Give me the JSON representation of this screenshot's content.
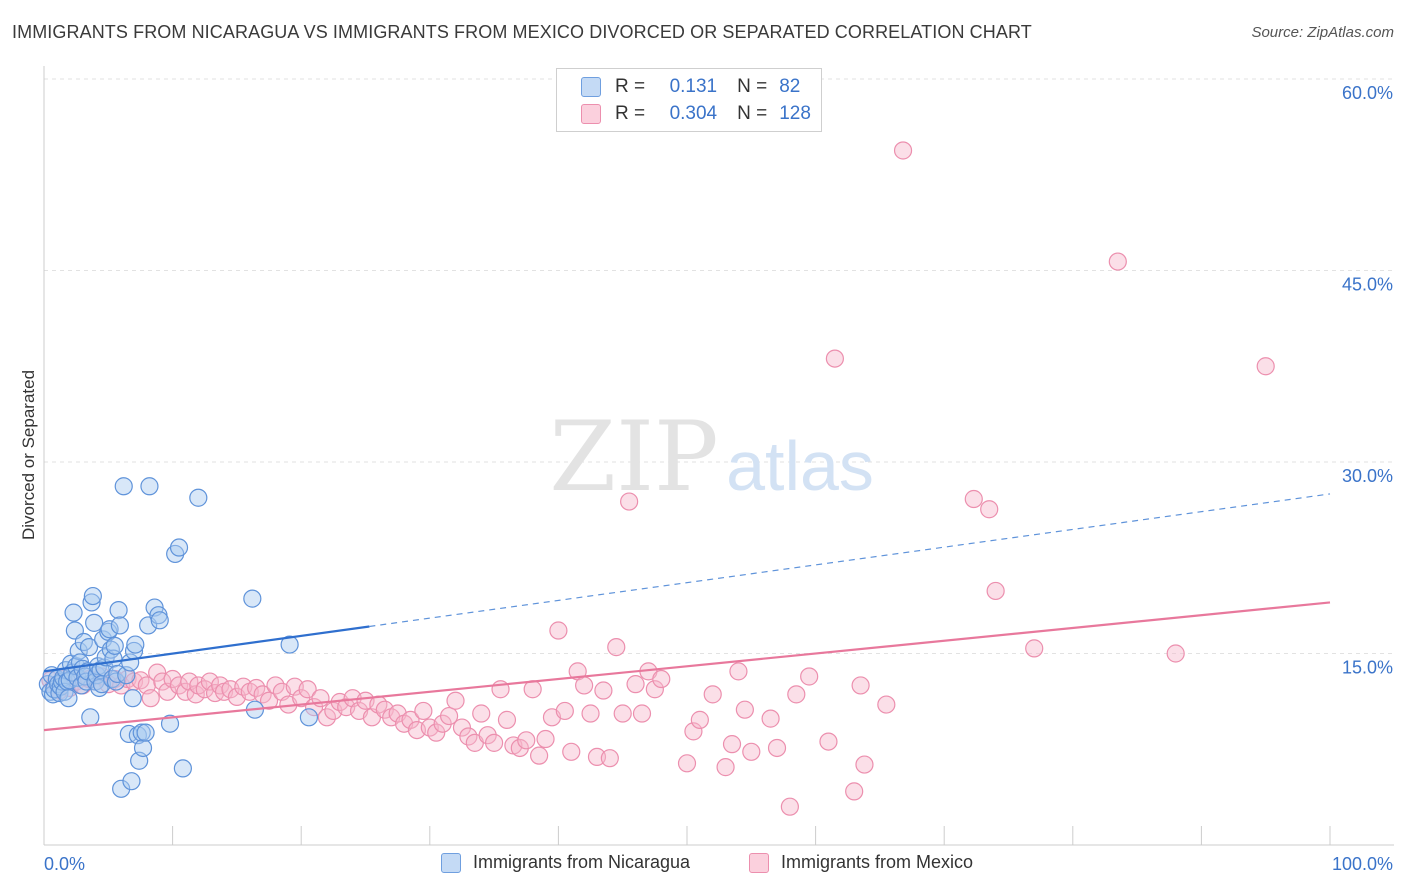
{
  "header": {
    "title": "IMMIGRANTS FROM NICARAGUA VS IMMIGRANTS FROM MEXICO DIVORCED OR SEPARATED CORRELATION CHART",
    "source": "Source: ZipAtlas.com"
  },
  "watermark": {
    "zip": "ZIP",
    "atlas": "atlas"
  },
  "legend": {
    "series1": {
      "r_label": "R =",
      "r_value": "0.131",
      "n_label": "N =",
      "n_value": "82",
      "color": "#a9c9f0"
    },
    "series2": {
      "r_label": "R =",
      "r_value": "0.304",
      "n_label": "N =",
      "n_value": "128",
      "color": "#f7b8cb"
    }
  },
  "bottom_legend": {
    "series1": "Immigrants from Nicaragua",
    "series2": "Immigrants from Mexico"
  },
  "chart_data": {
    "type": "scatter",
    "ylabel": "Divorced or Separated",
    "xlim": [
      0,
      100
    ],
    "ylim": [
      0,
      60
    ],
    "x_tick_labels": [
      "0.0%",
      "100.0%"
    ],
    "y_tick_labels": [
      {
        "value": 15,
        "label": "15.0%"
      },
      {
        "value": 30,
        "label": "30.0%"
      },
      {
        "value": 45,
        "label": "45.0%"
      },
      {
        "value": 60,
        "label": "60.0%"
      }
    ],
    "grid": true,
    "colors": {
      "nicaragua": "#4a86d8",
      "mexico": "#e8789c"
    },
    "series": [
      {
        "name": "Immigrants from Nicaragua",
        "trend": {
          "x0": 0,
          "y0": 13.6,
          "x1": 100,
          "y1": 27.5,
          "solid_until": 25.3
        },
        "points": [
          [
            0.3,
            12.6
          ],
          [
            0.5,
            12.0
          ],
          [
            0.6,
            13.3
          ],
          [
            0.7,
            11.8
          ],
          [
            0.8,
            12.2
          ],
          [
            1.0,
            13.0
          ],
          [
            1.1,
            12.6
          ],
          [
            1.2,
            11.9
          ],
          [
            1.3,
            12.4
          ],
          [
            1.4,
            12.8
          ],
          [
            1.5,
            13.1
          ],
          [
            1.6,
            12.0
          ],
          [
            1.7,
            13.7
          ],
          [
            1.8,
            12.8
          ],
          [
            1.9,
            11.5
          ],
          [
            2.0,
            12.9
          ],
          [
            2.1,
            14.2
          ],
          [
            2.2,
            13.5
          ],
          [
            2.3,
            18.2
          ],
          [
            2.4,
            16.8
          ],
          [
            2.5,
            14.0
          ],
          [
            2.6,
            13.1
          ],
          [
            2.7,
            15.2
          ],
          [
            2.8,
            14.3
          ],
          [
            2.9,
            12.5
          ],
          [
            3.0,
            13.8
          ],
          [
            3.1,
            15.9
          ],
          [
            3.2,
            13.2
          ],
          [
            3.3,
            12.8
          ],
          [
            3.4,
            13.6
          ],
          [
            3.5,
            15.5
          ],
          [
            3.6,
            10.0
          ],
          [
            3.7,
            19.0
          ],
          [
            3.8,
            19.5
          ],
          [
            3.9,
            17.4
          ],
          [
            4.0,
            12.8
          ],
          [
            4.1,
            13.3
          ],
          [
            4.2,
            14.0
          ],
          [
            4.3,
            12.3
          ],
          [
            4.4,
            13.7
          ],
          [
            4.5,
            12.6
          ],
          [
            4.6,
            16.1
          ],
          [
            4.7,
            13.9
          ],
          [
            4.8,
            14.7
          ],
          [
            5.0,
            16.7
          ],
          [
            5.1,
            16.9
          ],
          [
            5.2,
            15.3
          ],
          [
            5.3,
            13.0
          ],
          [
            5.4,
            14.6
          ],
          [
            5.5,
            15.6
          ],
          [
            5.6,
            12.8
          ],
          [
            5.7,
            13.4
          ],
          [
            5.8,
            18.4
          ],
          [
            5.9,
            17.2
          ],
          [
            6.0,
            4.4
          ],
          [
            6.2,
            28.1
          ],
          [
            6.4,
            13.3
          ],
          [
            6.6,
            8.7
          ],
          [
            6.7,
            14.3
          ],
          [
            6.8,
            5.0
          ],
          [
            6.9,
            11.5
          ],
          [
            7.0,
            15.2
          ],
          [
            7.1,
            15.7
          ],
          [
            7.3,
            8.6
          ],
          [
            7.4,
            6.6
          ],
          [
            7.6,
            8.8
          ],
          [
            7.7,
            7.6
          ],
          [
            7.9,
            8.8
          ],
          [
            8.1,
            17.2
          ],
          [
            8.2,
            28.1
          ],
          [
            8.6,
            18.6
          ],
          [
            8.9,
            18.0
          ],
          [
            9.0,
            17.6
          ],
          [
            9.8,
            9.5
          ],
          [
            10.2,
            22.8
          ],
          [
            10.5,
            23.3
          ],
          [
            10.8,
            6.0
          ],
          [
            12.0,
            27.2
          ],
          [
            16.2,
            19.3
          ],
          [
            16.4,
            10.6
          ],
          [
            19.1,
            15.7
          ],
          [
            20.6,
            10.0
          ]
        ]
      },
      {
        "name": "Immigrants from Mexico",
        "trend": {
          "x0": 0,
          "y0": 9.0,
          "x1": 100,
          "y1": 19.0
        },
        "points": [
          [
            0.5,
            12.9
          ],
          [
            0.8,
            12.5
          ],
          [
            1.2,
            12.1
          ],
          [
            1.5,
            13.0
          ],
          [
            2.0,
            12.3
          ],
          [
            2.5,
            12.8
          ],
          [
            3.0,
            12.5
          ],
          [
            3.5,
            13.0
          ],
          [
            4.0,
            12.8
          ],
          [
            4.5,
            13.2
          ],
          [
            5.0,
            12.6
          ],
          [
            5.5,
            13.0
          ],
          [
            6.0,
            12.5
          ],
          [
            6.5,
            13.0
          ],
          [
            7.0,
            12.8
          ],
          [
            7.5,
            12.9
          ],
          [
            8.0,
            12.5
          ],
          [
            8.3,
            11.5
          ],
          [
            8.8,
            13.5
          ],
          [
            9.2,
            12.8
          ],
          [
            9.6,
            12.0
          ],
          [
            10.0,
            13.0
          ],
          [
            10.5,
            12.5
          ],
          [
            11.0,
            12.0
          ],
          [
            11.3,
            12.8
          ],
          [
            11.8,
            11.8
          ],
          [
            12.0,
            12.5
          ],
          [
            12.5,
            12.2
          ],
          [
            12.9,
            12.8
          ],
          [
            13.3,
            11.9
          ],
          [
            13.7,
            12.5
          ],
          [
            14.0,
            12.0
          ],
          [
            14.5,
            12.2
          ],
          [
            15.0,
            11.6
          ],
          [
            15.5,
            12.4
          ],
          [
            16.0,
            12.0
          ],
          [
            16.5,
            12.3
          ],
          [
            17.0,
            11.8
          ],
          [
            17.5,
            11.3
          ],
          [
            18.0,
            12.5
          ],
          [
            18.5,
            12.0
          ],
          [
            19.0,
            11.0
          ],
          [
            19.5,
            12.4
          ],
          [
            20.0,
            11.5
          ],
          [
            20.5,
            12.2
          ],
          [
            21.0,
            10.8
          ],
          [
            21.5,
            11.5
          ],
          [
            22.0,
            10.0
          ],
          [
            22.5,
            10.5
          ],
          [
            23.0,
            11.2
          ],
          [
            23.5,
            10.8
          ],
          [
            24.0,
            11.5
          ],
          [
            24.5,
            10.5
          ],
          [
            25.0,
            11.3
          ],
          [
            25.5,
            10.0
          ],
          [
            26.0,
            11.0
          ],
          [
            26.5,
            10.6
          ],
          [
            27.0,
            10.0
          ],
          [
            27.5,
            10.3
          ],
          [
            28.0,
            9.5
          ],
          [
            28.5,
            9.8
          ],
          [
            29.0,
            9.0
          ],
          [
            29.5,
            10.5
          ],
          [
            30.0,
            9.2
          ],
          [
            30.5,
            8.8
          ],
          [
            31.0,
            9.5
          ],
          [
            31.5,
            10.1
          ],
          [
            32.0,
            11.3
          ],
          [
            32.5,
            9.2
          ],
          [
            33.0,
            8.5
          ],
          [
            33.5,
            8.0
          ],
          [
            34.0,
            10.3
          ],
          [
            34.5,
            8.6
          ],
          [
            35.0,
            8.0
          ],
          [
            35.5,
            12.2
          ],
          [
            36.0,
            9.8
          ],
          [
            36.5,
            7.8
          ],
          [
            37.0,
            7.6
          ],
          [
            37.5,
            8.2
          ],
          [
            38.0,
            12.2
          ],
          [
            38.5,
            7.0
          ],
          [
            39.0,
            8.3
          ],
          [
            39.5,
            10.0
          ],
          [
            40.0,
            16.8
          ],
          [
            40.5,
            10.5
          ],
          [
            41.0,
            7.3
          ],
          [
            41.5,
            13.6
          ],
          [
            42.0,
            12.5
          ],
          [
            42.5,
            10.3
          ],
          [
            43.0,
            6.9
          ],
          [
            43.5,
            12.1
          ],
          [
            44.0,
            6.8
          ],
          [
            44.5,
            15.5
          ],
          [
            45.0,
            10.3
          ],
          [
            45.5,
            26.9
          ],
          [
            46.0,
            12.6
          ],
          [
            46.5,
            10.3
          ],
          [
            47.0,
            13.6
          ],
          [
            47.5,
            12.2
          ],
          [
            48.0,
            13.0
          ],
          [
            50.0,
            6.4
          ],
          [
            50.5,
            8.9
          ],
          [
            51.0,
            9.8
          ],
          [
            52.0,
            11.8
          ],
          [
            53.0,
            6.1
          ],
          [
            53.5,
            7.9
          ],
          [
            54.0,
            13.6
          ],
          [
            54.5,
            10.6
          ],
          [
            55.0,
            7.3
          ],
          [
            56.5,
            9.9
          ],
          [
            57.0,
            7.6
          ],
          [
            58.0,
            3.0
          ],
          [
            58.5,
            11.8
          ],
          [
            59.5,
            13.2
          ],
          [
            61.0,
            8.1
          ],
          [
            61.5,
            38.1
          ],
          [
            63.0,
            4.2
          ],
          [
            63.5,
            12.5
          ],
          [
            63.8,
            6.3
          ],
          [
            65.5,
            11.0
          ],
          [
            66.8,
            54.4
          ],
          [
            72.3,
            27.1
          ],
          [
            73.5,
            26.3
          ],
          [
            74.0,
            19.9
          ],
          [
            77.0,
            15.4
          ],
          [
            83.5,
            45.7
          ],
          [
            95.0,
            37.5
          ],
          [
            88.0,
            15.0
          ]
        ]
      }
    ]
  }
}
